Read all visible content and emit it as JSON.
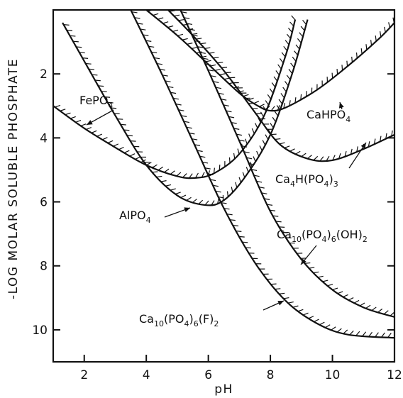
{
  "chart_data": {
    "type": "line",
    "title": "",
    "xlabel": "pH",
    "ylabel": "-LOG MOLAR SOLUBLE PHOSPHATE",
    "xlim": [
      1,
      12
    ],
    "ylim": [
      0,
      11
    ],
    "y_inverted": true,
    "x_ticks": [
      2,
      4,
      6,
      8,
      10,
      12
    ],
    "y_ticks": [
      2,
      4,
      6,
      8,
      10
    ],
    "grid": false,
    "series": [
      {
        "key": "fepo4",
        "label_parts": [
          "FePO",
          {
            "sub": "4"
          }
        ],
        "points": [
          [
            1.0,
            3.0
          ],
          [
            2.0,
            3.7
          ],
          [
            3.0,
            4.3
          ],
          [
            4.0,
            4.85
          ],
          [
            5.0,
            5.2
          ],
          [
            5.6,
            5.25
          ],
          [
            6.2,
            5.1
          ],
          [
            7.0,
            4.5
          ],
          [
            7.8,
            3.3
          ],
          [
            8.5,
            1.4
          ],
          [
            8.8,
            0.3
          ]
        ]
      },
      {
        "key": "alpo4",
        "label_parts": [
          "AlPO",
          {
            "sub": "4"
          }
        ],
        "points": [
          [
            1.3,
            0.4
          ],
          [
            2.0,
            1.6
          ],
          [
            3.0,
            3.3
          ],
          [
            4.0,
            4.85
          ],
          [
            5.0,
            5.8
          ],
          [
            5.9,
            6.1
          ],
          [
            6.5,
            5.95
          ],
          [
            7.2,
            5.2
          ],
          [
            8.0,
            3.9
          ],
          [
            8.7,
            2.0
          ],
          [
            9.2,
            0.3
          ]
        ]
      },
      {
        "key": "cahpo4",
        "label_parts": [
          "CaHPO",
          {
            "sub": "4"
          }
        ],
        "points": [
          [
            4.0,
            0.0
          ],
          [
            5.0,
            0.8
          ],
          [
            6.0,
            1.7
          ],
          [
            7.0,
            2.6
          ],
          [
            7.6,
            3.0
          ],
          [
            8.0,
            3.15
          ],
          [
            8.5,
            3.05
          ],
          [
            9.5,
            2.5
          ],
          [
            10.5,
            1.75
          ],
          [
            11.5,
            0.9
          ],
          [
            12.0,
            0.4
          ]
        ]
      },
      {
        "key": "ca4h",
        "label_parts": [
          "Ca",
          {
            "sub": "4"
          },
          "H(PO",
          {
            "sub": "4"
          },
          ")",
          {
            "sub": "3"
          }
        ],
        "points": [
          [
            4.7,
            0.0
          ],
          [
            5.5,
            0.8
          ],
          [
            6.5,
            1.9
          ],
          [
            7.5,
            3.2
          ],
          [
            8.3,
            4.2
          ],
          [
            9.2,
            4.65
          ],
          [
            10.0,
            4.7
          ],
          [
            11.0,
            4.35
          ],
          [
            12.0,
            3.9
          ]
        ]
      },
      {
        "key": "ca10oh",
        "label_parts": [
          "Ca",
          {
            "sub": "10"
          },
          "(PO",
          {
            "sub": "4"
          },
          ")",
          {
            "sub": "6"
          },
          "(OH)",
          {
            "sub": "2"
          }
        ],
        "points": [
          [
            5.1,
            0.0
          ],
          [
            6.0,
            1.9
          ],
          [
            7.0,
            4.1
          ],
          [
            8.0,
            6.3
          ],
          [
            9.0,
            7.8
          ],
          [
            10.0,
            8.75
          ],
          [
            11.0,
            9.3
          ],
          [
            12.0,
            9.6
          ]
        ]
      },
      {
        "key": "ca10f",
        "label_parts": [
          "Ca",
          {
            "sub": "10"
          },
          "(PO",
          {
            "sub": "4"
          },
          ")",
          {
            "sub": "6"
          },
          "(F)",
          {
            "sub": "2"
          }
        ],
        "points": [
          [
            3.5,
            0.0
          ],
          [
            4.5,
            2.0
          ],
          [
            5.5,
            4.1
          ],
          [
            6.5,
            6.2
          ],
          [
            7.5,
            7.9
          ],
          [
            8.5,
            9.1
          ],
          [
            9.5,
            9.8
          ],
          [
            10.5,
            10.15
          ],
          [
            12.0,
            10.25
          ]
        ]
      }
    ]
  }
}
